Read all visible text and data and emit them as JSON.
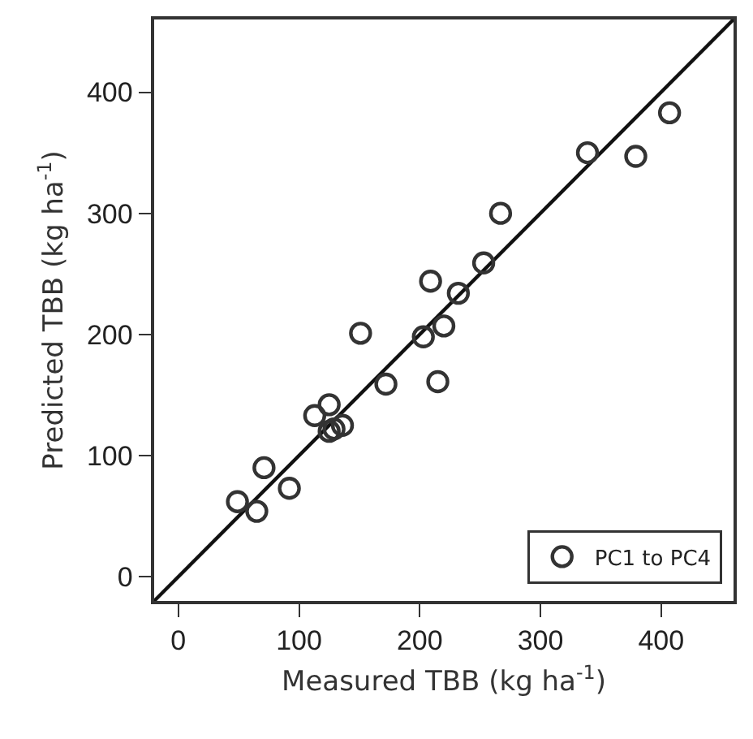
{
  "chart_data": {
    "type": "scatter",
    "xlabel": "Measured TBB (kg ha$^{-1}$)",
    "ylabel": "Predicted TBB (kg ha$^{-1}$)",
    "xlim": [
      -20,
      460
    ],
    "ylim": [
      -20,
      460
    ],
    "xticks": [
      0,
      100,
      200,
      300,
      400
    ],
    "yticks": [
      0,
      100,
      200,
      300,
      400
    ],
    "grid": false,
    "legend": "bottom right",
    "marker": "circle",
    "series": [
      {
        "name": "PC1 to PC4",
        "color": "#333333",
        "x": [
          407,
          339,
          379,
          267,
          253,
          209,
          232,
          151,
          203,
          220,
          172,
          215,
          113,
          125,
          125,
          136,
          129,
          71,
          92,
          49,
          65
        ],
        "values": [
          383,
          350,
          347,
          300,
          259,
          244,
          234,
          201,
          198,
          207,
          159,
          161,
          133,
          142,
          120,
          125,
          122,
          90,
          73,
          62,
          54
        ]
      },
      {
        "type": "line",
        "color": "#111111",
        "marker": "none",
        "line_style": "solid",
        "x": [
          -20,
          460
        ],
        "values": [
          -20,
          460
        ]
      }
    ]
  }
}
